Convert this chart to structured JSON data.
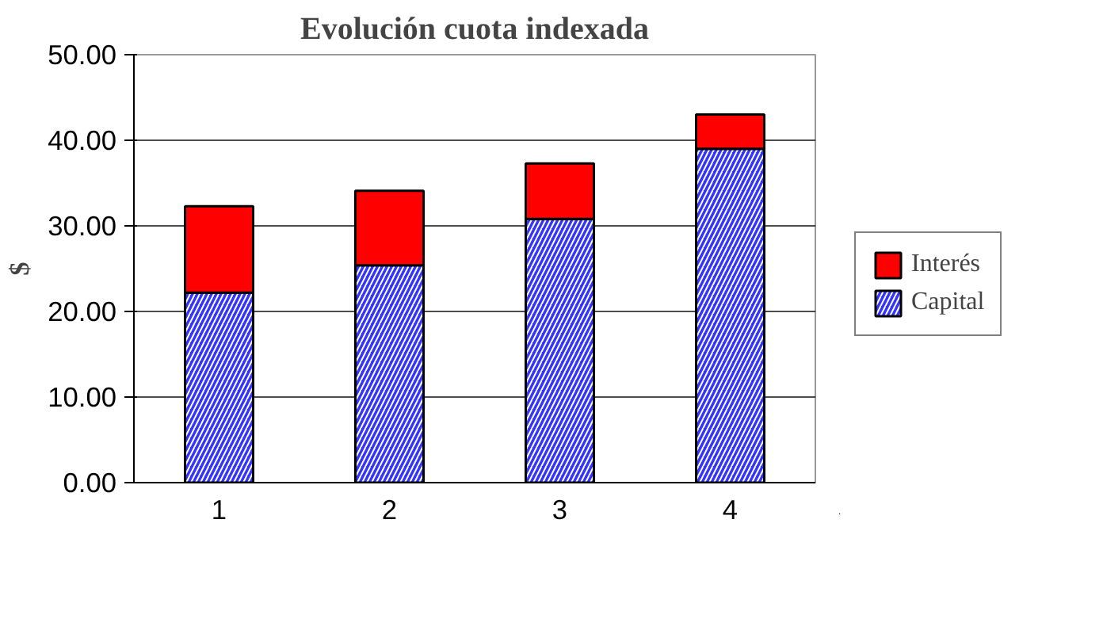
{
  "chart_data": {
    "type": "bar",
    "title": "Evolución cuota indexada",
    "ylabel": "$",
    "categories": [
      "1",
      "2",
      "3",
      "4"
    ],
    "stacked": true,
    "series": [
      {
        "name": "Capital",
        "color": "#3333ff",
        "values": [
          22.2,
          25.4,
          30.8,
          39.0
        ]
      },
      {
        "name": "Interés",
        "color": "#ff0000",
        "values": [
          10.1,
          8.7,
          6.5,
          4.0
        ]
      }
    ],
    "ylim": [
      0,
      50
    ],
    "yticks": [
      {
        "value": 0,
        "label": "0.00"
      },
      {
        "value": 10,
        "label": "10.00"
      },
      {
        "value": 20,
        "label": "20.00"
      },
      {
        "value": 30,
        "label": "30.00"
      },
      {
        "value": 40,
        "label": "40.00"
      },
      {
        "value": 50,
        "label": "50.00"
      }
    ],
    "grid": "y",
    "legend": "right"
  }
}
